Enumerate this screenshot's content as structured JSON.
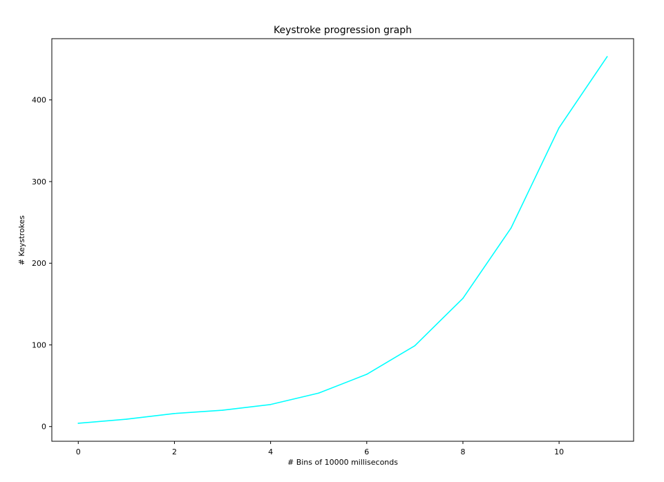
{
  "chart_data": {
    "type": "line",
    "title": "Keystroke progression graph",
    "xlabel": "# Bins of 10000 milliseconds",
    "ylabel": "# Keystrokes",
    "xlim": [
      -0.55,
      11.55
    ],
    "ylim": [
      -18,
      475
    ],
    "xticks": [
      0,
      2,
      4,
      6,
      8,
      10
    ],
    "yticks": [
      0,
      100,
      200,
      300,
      400
    ],
    "grid": false,
    "legend": "none",
    "colors": {
      "line": "#00ffff",
      "axes": "#000000",
      "background": "#ffffff"
    },
    "series": [
      {
        "x": [
          0,
          1,
          2,
          3,
          4,
          5,
          6,
          7,
          8,
          9,
          10,
          11
        ],
        "values": [
          4,
          9,
          16,
          20,
          27,
          41,
          64,
          99,
          157,
          243,
          366,
          453
        ]
      }
    ]
  }
}
